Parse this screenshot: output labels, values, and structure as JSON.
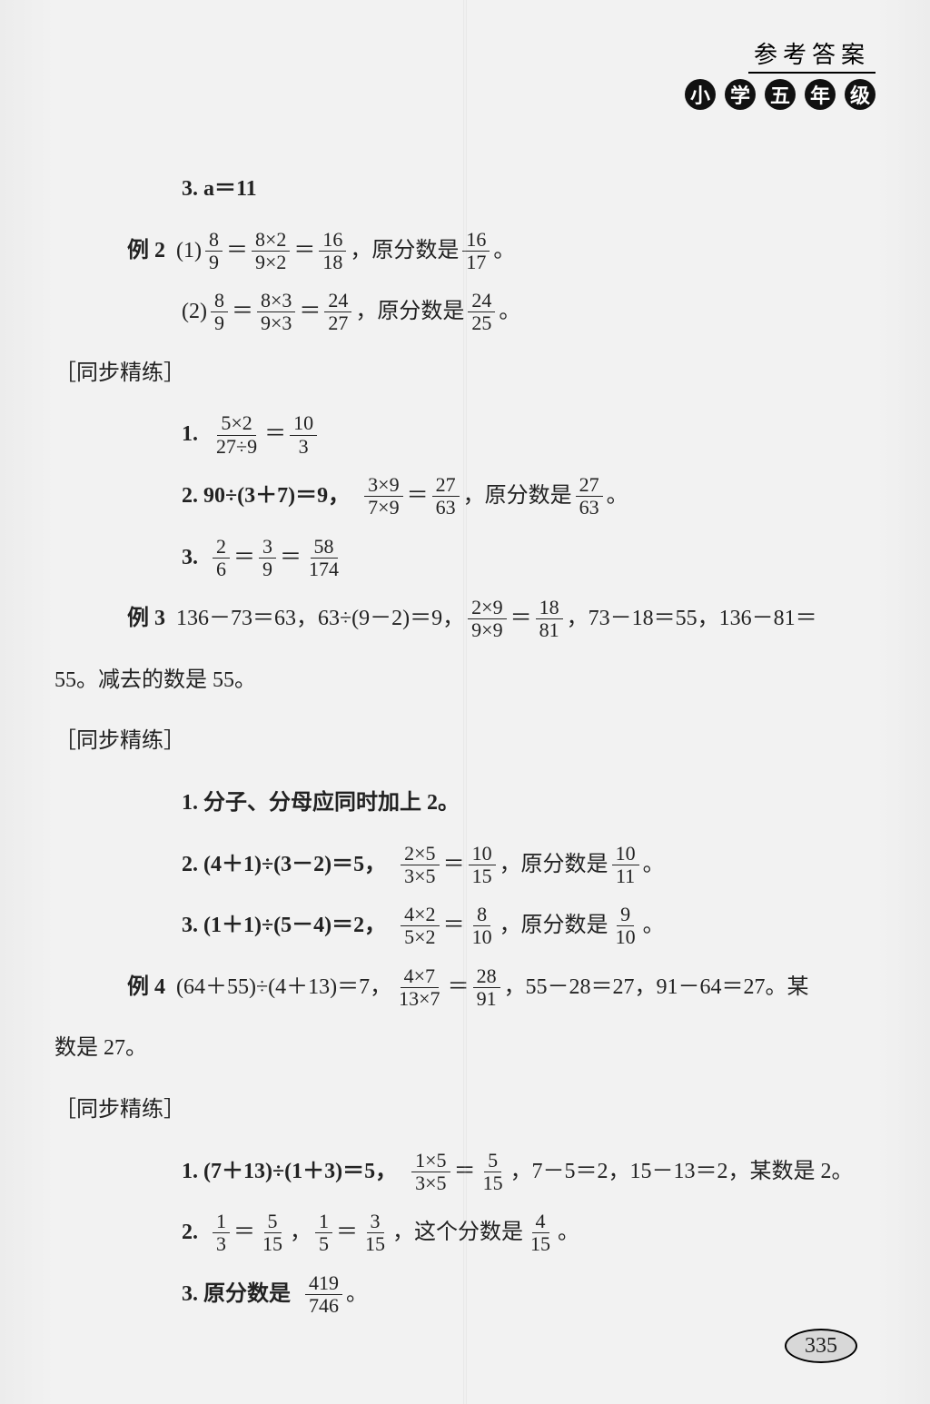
{
  "header": {
    "ref_title": "参考答案",
    "grade_badges": [
      "小",
      "学",
      "五",
      "年",
      "级"
    ]
  },
  "lines": {
    "l1": "3. a＝11",
    "l2_lead": "例 2",
    "l2a": "(1)",
    "l2_eq": "＝",
    "l2_mid": "＝",
    "l2_tail": "，原分数是",
    "l2_end": "。",
    "l3a": "(2)",
    "sec1": "［同步精练］",
    "s1_1": "1.",
    "s1_2_lead": "2. 90÷(3＋7)＝9，",
    "s1_2_tail": "，原分数是",
    "s1_3": "3.",
    "l4_lead": "例 3",
    "l4_body_a": "136－73＝63，63÷(9－2)＝9，",
    "l4_body_b": "，73－18＝55，136－81＝",
    "l4_line2": "55。减去的数是 55。",
    "sec2": "［同步精练］",
    "s2_1": "1. 分子、分母应同时加上 2。",
    "s2_2_lead": "2. (4＋1)÷(3－2)＝5，",
    "s2_2_tail": "，原分数是",
    "s2_3_lead": "3. (1＋1)÷(5－4)＝2，",
    "s2_3_tail": "，原分数是",
    "l5_lead": "例 4",
    "l5_a": "(64＋55)÷(4＋13)＝7，",
    "l5_b": "，55－28＝27，91－64＝27。某",
    "l5_line2": "数是 27。",
    "sec3": "［同步精练］",
    "s3_1_lead": "1. (7＋13)÷(1＋3)＝5，",
    "s3_1_tail": "，7－5＝2，15－13＝2，某数是 2。",
    "s3_2_lead": "2.",
    "s3_2_mid": "，",
    "s3_2_tail": "，这个分数是",
    "s3_3_lead": "3. 原分数是",
    "period": "。"
  },
  "fracs": {
    "f8_9": {
      "n": "8",
      "d": "9"
    },
    "f8x2_9x2": {
      "n": "8×2",
      "d": "9×2"
    },
    "f16_18": {
      "n": "16",
      "d": "18"
    },
    "f16_17": {
      "n": "16",
      "d": "17"
    },
    "f8x3_9x3": {
      "n": "8×3",
      "d": "9×3"
    },
    "f24_27": {
      "n": "24",
      "d": "27"
    },
    "f24_25": {
      "n": "24",
      "d": "25"
    },
    "f5x2_27d9": {
      "n": "5×2",
      "d": "27÷9"
    },
    "f10_3": {
      "n": "10",
      "d": "3"
    },
    "f3x9_7x9": {
      "n": "3×9",
      "d": "7×9"
    },
    "f27_63": {
      "n": "27",
      "d": "63"
    },
    "f2_6": {
      "n": "2",
      "d": "6"
    },
    "f3_9": {
      "n": "3",
      "d": "9"
    },
    "f58_174": {
      "n": "58",
      "d": "174"
    },
    "f2x9_9x9": {
      "n": "2×9",
      "d": "9×9"
    },
    "f18_81": {
      "n": "18",
      "d": "81"
    },
    "f2x5_3x5": {
      "n": "2×5",
      "d": "3×5"
    },
    "f10_15": {
      "n": "10",
      "d": "15"
    },
    "f10_11": {
      "n": "10",
      "d": "11"
    },
    "f4x2_5x2": {
      "n": "4×2",
      "d": "5×2"
    },
    "f8_10": {
      "n": "8",
      "d": "10"
    },
    "f9_10": {
      "n": "9",
      "d": "10"
    },
    "f4x7_13x7": {
      "n": "4×7",
      "d": "13×7"
    },
    "f28_91": {
      "n": "28",
      "d": "91"
    },
    "f1x5_3x5": {
      "n": "1×5",
      "d": "3×5"
    },
    "f5_15": {
      "n": "5",
      "d": "15"
    },
    "f1_3": {
      "n": "1",
      "d": "3"
    },
    "f1_5": {
      "n": "1",
      "d": "5"
    },
    "f3_15": {
      "n": "3",
      "d": "15"
    },
    "f4_15": {
      "n": "4",
      "d": "15"
    },
    "f419_746": {
      "n": "419",
      "d": "746"
    }
  },
  "page_number": "335"
}
